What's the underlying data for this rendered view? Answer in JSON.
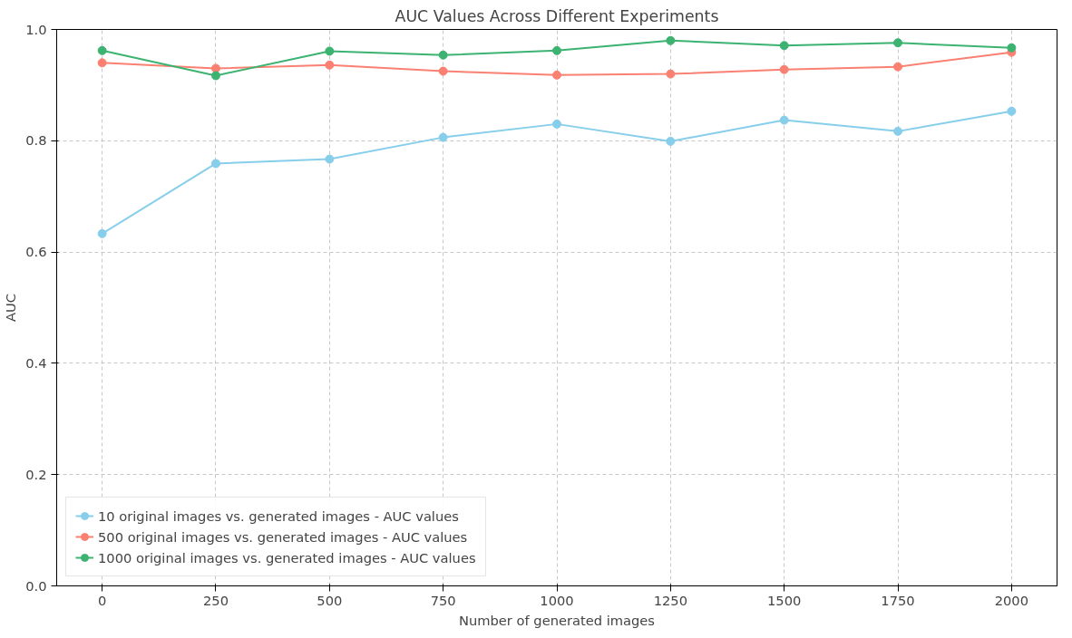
{
  "chart_data": {
    "type": "line",
    "title": "AUC Values Across Different Experiments",
    "xlabel": "Number of generated images",
    "ylabel": "AUC",
    "x": [
      0,
      250,
      500,
      750,
      1000,
      1250,
      1500,
      1750,
      2000
    ],
    "series": [
      {
        "name": "10 original images vs. generated images - AUC values",
        "color": "#87ceeb",
        "values": [
          0.633,
          0.759,
          0.767,
          0.806,
          0.83,
          0.799,
          0.837,
          0.817,
          0.853
        ]
      },
      {
        "name": "500 original images vs. generated images - AUC values",
        "color": "#fa8072",
        "values": [
          0.94,
          0.93,
          0.936,
          0.925,
          0.918,
          0.92,
          0.928,
          0.933,
          0.959
        ]
      },
      {
        "name": "1000 original images vs. generated images - AUC values",
        "color": "#3cb371",
        "values": [
          0.962,
          0.917,
          0.961,
          0.954,
          0.962,
          0.98,
          0.971,
          0.976,
          0.967
        ]
      }
    ],
    "xlim": [
      -100,
      2100
    ],
    "ylim": [
      0,
      1
    ],
    "xticks": [
      0,
      250,
      500,
      750,
      1000,
      1250,
      1500,
      1750,
      2000
    ],
    "yticks": [
      {
        "value": 0,
        "label": "0.0"
      },
      0.2,
      0.4,
      0.6,
      0.8,
      {
        "value": 1,
        "label": "1.0"
      }
    ],
    "grid": true,
    "legend": "bottom left",
    "marker": "circle",
    "line_style": "solid"
  }
}
